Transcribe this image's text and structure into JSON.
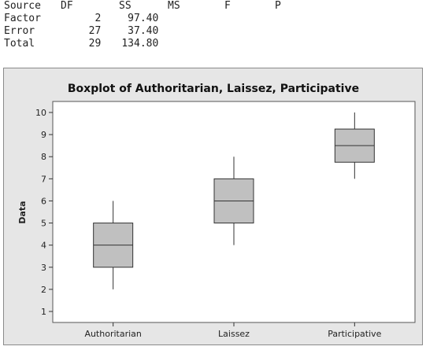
{
  "anova_table": {
    "headers": [
      "Source",
      "DF",
      "SS",
      "MS",
      "F",
      "P"
    ],
    "rows": [
      {
        "source": "Factor",
        "df": "2",
        "ss": "97.40"
      },
      {
        "source": "Error",
        "df": "27",
        "ss": "37.40"
      },
      {
        "source": "Total",
        "df": "29",
        "ss": "134.80"
      }
    ]
  },
  "chart_data": {
    "type": "boxplot",
    "title": "Boxplot of Authoritarian, Laissez, Participative",
    "xlabel": "",
    "ylabel": "Data",
    "ylim": [
      1,
      10
    ],
    "yticks": [
      1,
      2,
      3,
      4,
      5,
      6,
      7,
      8,
      9,
      10
    ],
    "grid": false,
    "colors": {
      "box_fill": "#c0c0c0",
      "box_stroke": "#333333",
      "plot_bg": "#ffffff",
      "frame_bg": "#e6e6e6"
    },
    "categories": [
      "Authoritarian",
      "Laissez",
      "Participative"
    ],
    "boxes": [
      {
        "category": "Authoritarian",
        "min": 2,
        "q1": 3,
        "median": 4,
        "q3": 5,
        "max": 6
      },
      {
        "category": "Laissez",
        "min": 4,
        "q1": 5,
        "median": 6,
        "q3": 7,
        "max": 8
      },
      {
        "category": "Participative",
        "min": 7,
        "q1": 7.75,
        "median": 8.5,
        "q3": 9.25,
        "max": 10
      }
    ]
  }
}
